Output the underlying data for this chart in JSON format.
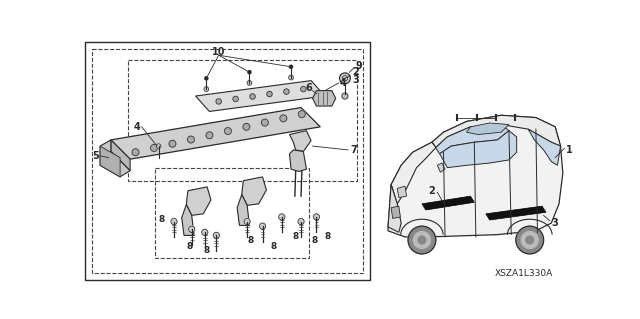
{
  "bg_color": "#ffffff",
  "line_color": "#2a2a2a",
  "dashed_color": "#444444",
  "watermark": "XSZA1L330A"
}
